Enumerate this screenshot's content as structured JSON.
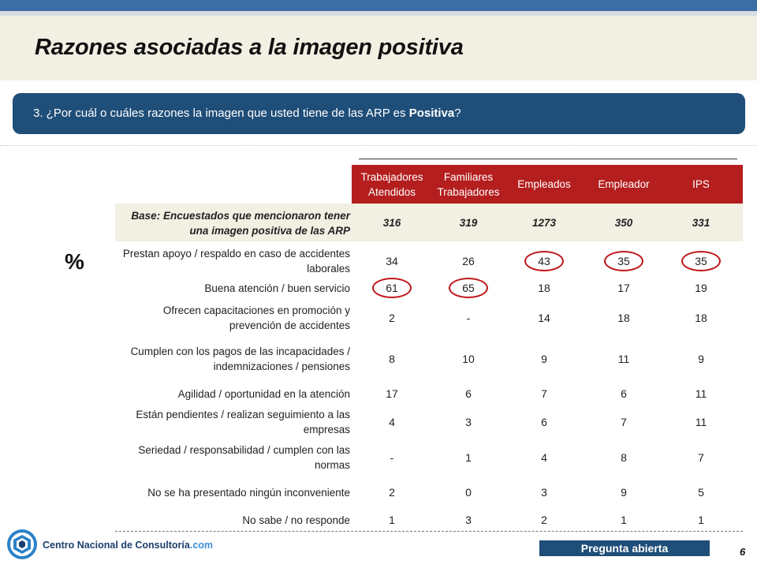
{
  "slide": {
    "title": "Razones asociadas a la imagen positiva",
    "question_prefix": "3. ¿Por cuál o cuáles razones la imagen que usted tiene de las ARP es ",
    "question_bold": "Positiva",
    "question_suffix": "?",
    "unit": "%",
    "page_number": "6",
    "badge": "Pregunta abierta"
  },
  "brand": {
    "name": "Centro Nacional de Consultoría",
    "suffix": ".com"
  },
  "colors": {
    "header_red": "#b41e1e",
    "navy": "#1f4e79",
    "beige": "#f2efe3",
    "highlight": "#c0191d"
  },
  "table": {
    "columns": [
      "Trabajadores Atendidos",
      "Familiares Trabajadores",
      "Empleados",
      "Empleador",
      "IPS"
    ],
    "base": {
      "label": "Base: Encuestados que mencionaron tener una imagen positiva de las ARP",
      "values": [
        "316",
        "319",
        "1273",
        "350",
        "331"
      ]
    },
    "rows": [
      {
        "label": "Prestan apoyo / respaldo en caso de accidentes laborales",
        "values": [
          "34",
          "26",
          "43",
          "35",
          "35"
        ],
        "circled": [
          2,
          3,
          4
        ]
      },
      {
        "label": "Buena atención / buen servicio",
        "values": [
          "61",
          "65",
          "18",
          "17",
          "19"
        ],
        "circled": [
          0,
          1
        ]
      },
      {
        "label": "Ofrecen capacitaciones en promoción y prevención de accidentes",
        "values": [
          "2",
          "-",
          "14",
          "18",
          "18"
        ],
        "circled": []
      },
      {
        "label": "Cumplen con los pagos de las incapacidades / indemnizaciones / pensiones",
        "values": [
          "8",
          "10",
          "9",
          "11",
          "9"
        ],
        "circled": []
      },
      {
        "label": "Agilidad / oportunidad en la atención",
        "values": [
          "17",
          "6",
          "7",
          "6",
          "11"
        ],
        "circled": []
      },
      {
        "label": "Están pendientes / realizan seguimiento a las empresas",
        "values": [
          "4",
          "3",
          "6",
          "7",
          "11"
        ],
        "circled": []
      },
      {
        "label": "Seriedad / responsabilidad / cumplen con las normas",
        "values": [
          "-",
          "1",
          "4",
          "8",
          "7"
        ],
        "circled": []
      },
      {
        "label": "No se ha presentado ningún inconveniente",
        "values": [
          "2",
          "0",
          "3",
          "9",
          "5"
        ],
        "circled": []
      },
      {
        "label": "No sabe / no responde",
        "values": [
          "1",
          "3",
          "2",
          "1",
          "1"
        ],
        "circled": []
      }
    ]
  }
}
